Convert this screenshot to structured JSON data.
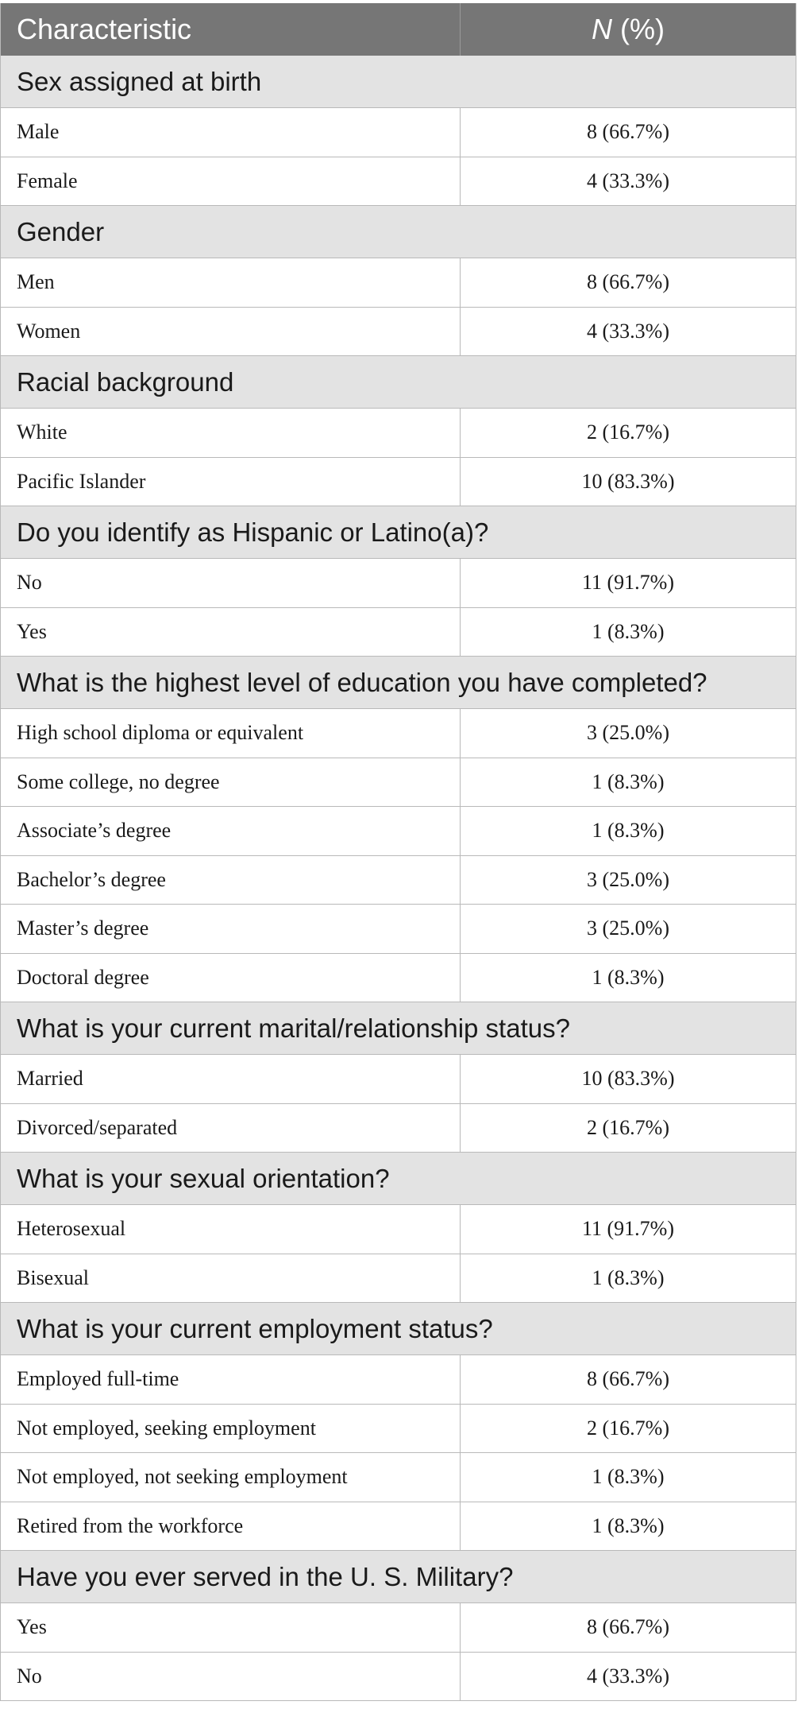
{
  "table": {
    "header": {
      "characteristic": "Characteristic",
      "n_italic": "N",
      "n_rest": " (%)"
    },
    "sections": [
      {
        "title": "Sex assigned at birth",
        "rows": [
          {
            "label": "Male",
            "value": "8 (66.7%)"
          },
          {
            "label": "Female",
            "value": "4 (33.3%)"
          }
        ]
      },
      {
        "title": "Gender",
        "rows": [
          {
            "label": "Men",
            "value": "8 (66.7%)"
          },
          {
            "label": "Women",
            "value": "4 (33.3%)"
          }
        ]
      },
      {
        "title": "Racial background",
        "rows": [
          {
            "label": "White",
            "value": "2 (16.7%)"
          },
          {
            "label": "Pacific Islander",
            "value": "10 (83.3%)"
          }
        ]
      },
      {
        "title": "Do you identify as Hispanic or Latino(a)?",
        "rows": [
          {
            "label": "No",
            "value": "11 (91.7%)"
          },
          {
            "label": "Yes",
            "value": "1 (8.3%)"
          }
        ]
      },
      {
        "title": "What is the highest level of education you have completed?",
        "rows": [
          {
            "label": "High school diploma or equivalent",
            "value": "3 (25.0%)"
          },
          {
            "label": "Some college, no degree",
            "value": "1 (8.3%)"
          },
          {
            "label": "Associate’s degree",
            "value": "1 (8.3%)"
          },
          {
            "label": "Bachelor’s degree",
            "value": "3 (25.0%)"
          },
          {
            "label": "Master’s degree",
            "value": "3 (25.0%)"
          },
          {
            "label": "Doctoral degree",
            "value": "1 (8.3%)"
          }
        ]
      },
      {
        "title": "What is your current marital/relationship status?",
        "rows": [
          {
            "label": "Married",
            "value": "10 (83.3%)"
          },
          {
            "label": "Divorced/separated",
            "value": "2 (16.7%)"
          }
        ]
      },
      {
        "title": "What is your sexual orientation?",
        "rows": [
          {
            "label": "Heterosexual",
            "value": "11 (91.7%)"
          },
          {
            "label": "Bisexual",
            "value": "1 (8.3%)"
          }
        ]
      },
      {
        "title": "What is your current employment status?",
        "rows": [
          {
            "label": "Employed full-time",
            "value": "8 (66.7%)"
          },
          {
            "label": "Not employed, seeking employment",
            "value": "2 (16.7%)"
          },
          {
            "label": "Not employed, not seeking employment",
            "value": "1 (8.3%)"
          },
          {
            "label": "Retired from the workforce",
            "value": "1 (8.3%)"
          }
        ]
      },
      {
        "title": "Have you ever served in the U. S. Military?",
        "rows": [
          {
            "label": "Yes",
            "value": "8 (66.7%)"
          },
          {
            "label": "No",
            "value": "4 (33.3%)"
          }
        ]
      }
    ]
  }
}
